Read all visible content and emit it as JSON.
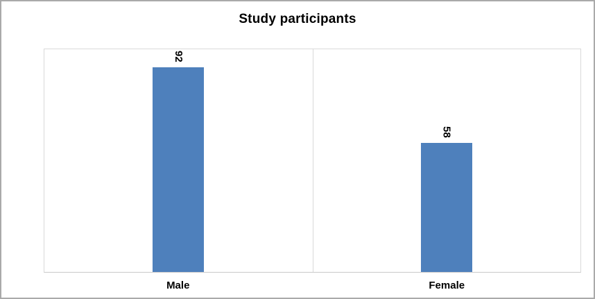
{
  "chart_data": {
    "type": "bar",
    "title": "Study participants",
    "categories": [
      "Male",
      "Female"
    ],
    "values": [
      92,
      58
    ],
    "xlabel": "",
    "ylabel": "",
    "ylim": [
      0,
      100
    ],
    "bar_color": "#4e80bc",
    "grid": "category-boundary vertical line only, plot area outlined",
    "legend_position": "none",
    "data_label_rotation": "vertical"
  }
}
